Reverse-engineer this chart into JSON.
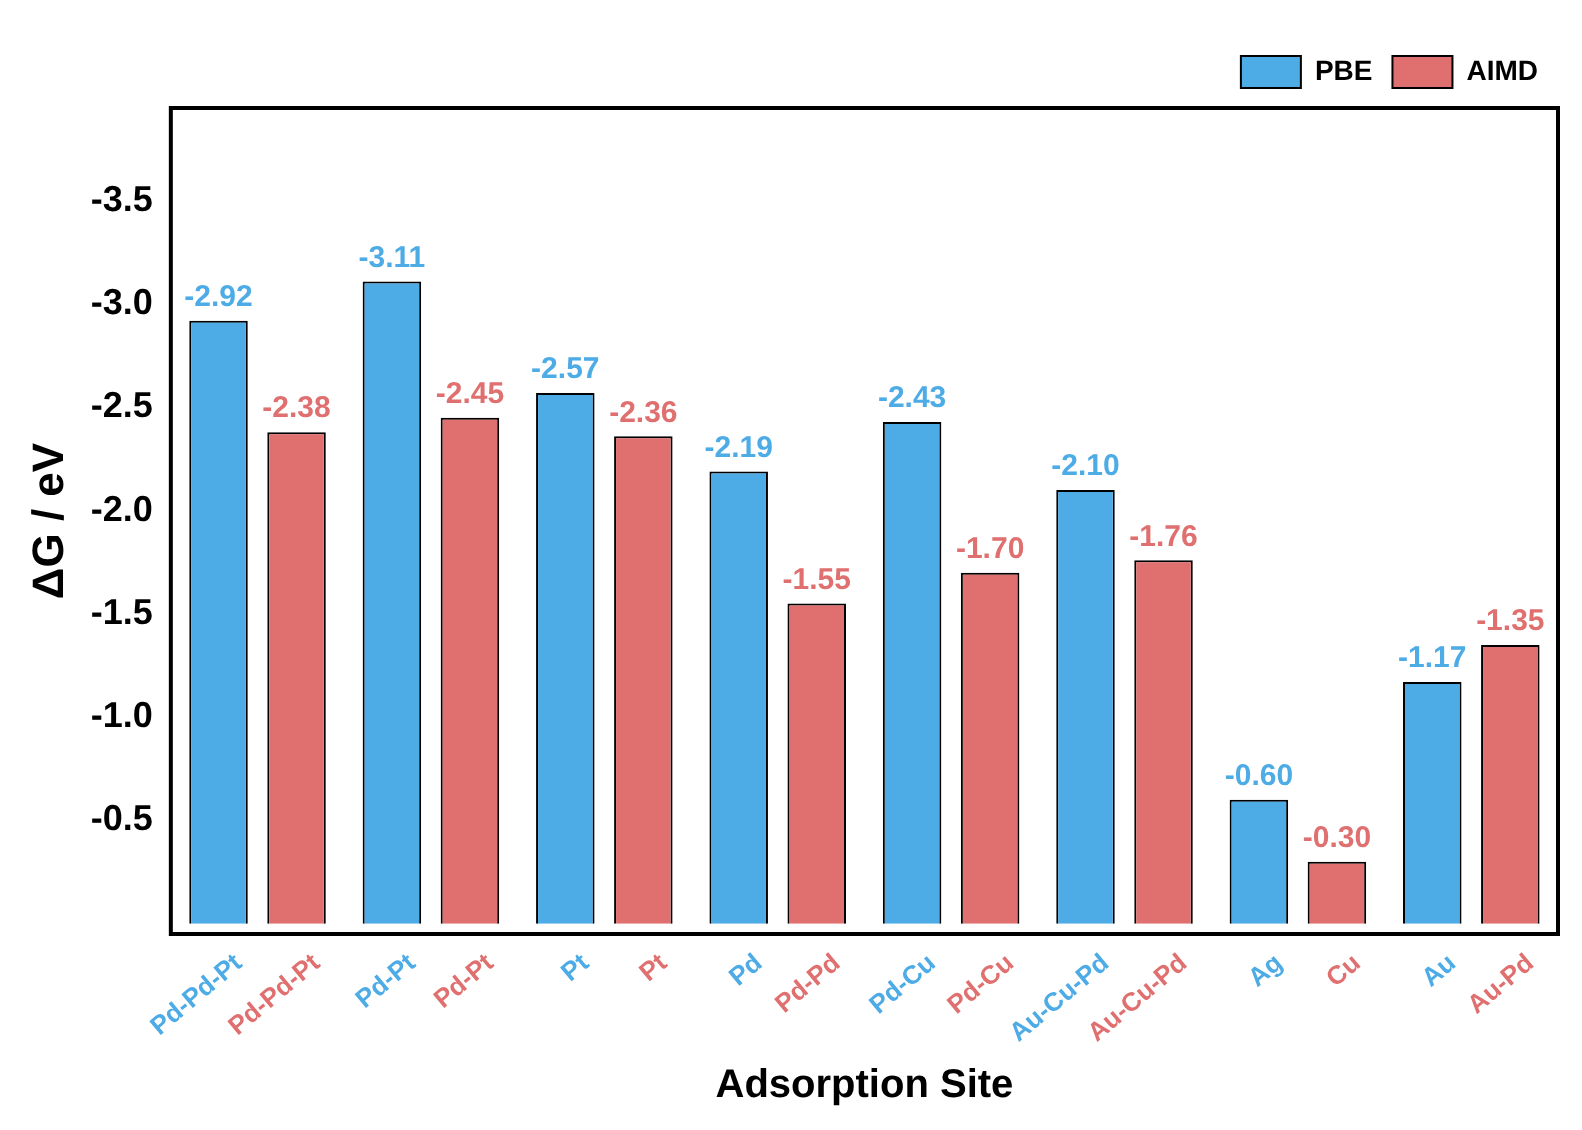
{
  "chart_data": {
    "type": "bar",
    "xlabel": "Adsorption Site",
    "ylabel": "ΔG / eV",
    "categories": [
      "Pd-Pd-Pt",
      "Pd-Pt",
      "Pt",
      "Pd",
      "Pd-Cu",
      "Au-Cu-Pd",
      "Ag",
      "Au"
    ],
    "annotations": [
      "Pd-Pd-Pt",
      "Pd-Pt",
      "Pt",
      "Pd-Pd",
      "Pd-Cu",
      "Au-Cu-Pd",
      "Cu",
      "Au-Pd"
    ],
    "series": [
      {
        "name": "PBE",
        "color": "#4dabe6",
        "values": [
          -2.92,
          -3.11,
          -2.57,
          -2.19,
          -2.43,
          -2.1,
          -0.6,
          -1.17
        ],
        "value_labels": [
          "-2.92",
          "-3.11",
          "-2.57",
          "-2.19",
          "-2.43",
          "-2.10",
          "-0.60",
          "-1.17"
        ]
      },
      {
        "name": "AIMD",
        "color": "#e07070",
        "values": [
          -2.38,
          -2.45,
          -2.36,
          -1.55,
          -1.7,
          -1.76,
          -0.3,
          -1.35
        ],
        "value_labels": [
          "-2.38",
          "-2.45",
          "-2.36",
          "-1.55",
          "-1.70",
          "-1.76",
          "-0.30",
          "-1.35"
        ]
      }
    ],
    "ylim": [
      0.05,
      -3.95
    ],
    "yticks": [
      {
        "value": -0.5,
        "label": "-0.5"
      },
      {
        "value": -1,
        "label": "-1.0"
      },
      {
        "value": -1.5,
        "label": "-1.5"
      },
      {
        "value": -2,
        "label": "-2.0"
      },
      {
        "value": -2.5,
        "label": "-2.5"
      },
      {
        "value": -3,
        "label": "-3.0"
      },
      {
        "value": -3.5,
        "label": "-3.5"
      }
    ],
    "legend": "top right",
    "grid": false
  }
}
